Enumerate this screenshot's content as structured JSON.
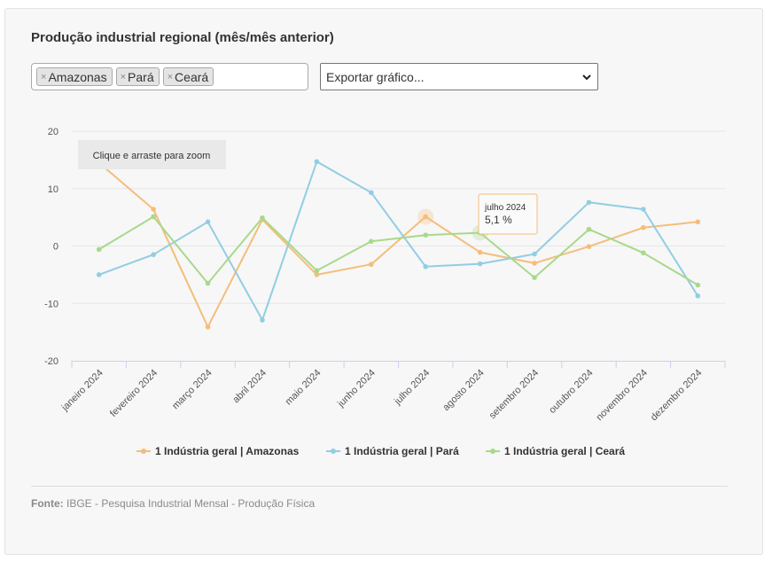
{
  "title": "Produção industrial regional (mês/mês anterior)",
  "filters": [
    {
      "label": "Amazonas",
      "remove": "×"
    },
    {
      "label": "Pará",
      "remove": "×"
    },
    {
      "label": "Ceará",
      "remove": "×"
    }
  ],
  "export": {
    "label": "Exportar gráfico..."
  },
  "zoom_hint": "Clique e arraste para zoom",
  "tooltip": {
    "title": "julho 2024",
    "value": "5,1 %"
  },
  "source": {
    "label": "Fonte:",
    "text": "IBGE - Pesquisa Industrial Mensal - Produção Física"
  },
  "colors": {
    "amazonas": "#f5bd7a",
    "para": "#92cde3",
    "ceara": "#a8d98b"
  },
  "chart_data": {
    "type": "line",
    "categories": [
      "janeiro 2024",
      "fevereiro 2024",
      "março 2024",
      "abril 2024",
      "maio 2024",
      "junho 2024",
      "julho 2024",
      "agosto 2024",
      "setembro 2024",
      "outubro 2024",
      "novembro 2024",
      "dezembro 2024"
    ],
    "ylim": [
      -20,
      20
    ],
    "yticks": [
      "20",
      "10",
      "0",
      "-10",
      "-20"
    ],
    "grid": true,
    "legend_position": "bottom",
    "series": [
      {
        "name": "1 Indústria geral | Amazonas",
        "values": [
          14.5,
          6.4,
          -14.1,
          4.6,
          -5.0,
          -3.2,
          5.1,
          -1.1,
          -3.0,
          -0.1,
          3.2,
          4.2
        ]
      },
      {
        "name": "1 Indústria geral | Pará",
        "values": [
          -5.0,
          -1.5,
          4.2,
          -12.9,
          14.7,
          9.3,
          -3.6,
          -3.1,
          -1.4,
          7.6,
          6.4,
          -8.7
        ]
      },
      {
        "name": "1 Indústria geral | Ceará",
        "values": [
          -0.6,
          5.1,
          -6.5,
          4.9,
          -4.3,
          0.8,
          1.9,
          2.3,
          -5.5,
          2.9,
          -1.2,
          -6.8
        ]
      }
    ]
  }
}
